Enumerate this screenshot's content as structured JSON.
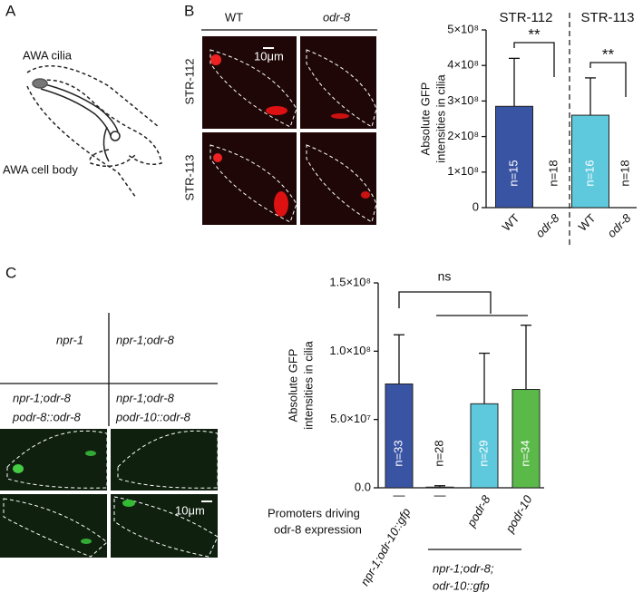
{
  "panel_labels": [
    "A",
    "B",
    "C"
  ],
  "panel_a": {
    "cilia": "AWA cilia",
    "cell_body": "AWA cell body"
  },
  "panel_b": {
    "columns": [
      "WT",
      "odr-8"
    ],
    "rows": [
      "STR-112",
      "STR-113"
    ],
    "scale": "10μm"
  },
  "panel_c": {
    "headers": [
      "npr-1",
      "npr-1;odr-8"
    ],
    "rescue_left": [
      "npr-1;odr-8",
      "podr-8::odr-8"
    ],
    "rescue_right": [
      "npr-1;odr-8",
      "podr-10::odr-8"
    ],
    "scale": "10μm"
  },
  "chart_data": [
    {
      "type": "bar",
      "y_label": [
        "Absolute GFP",
        "intensities in cilia"
      ],
      "categories": [
        "WT",
        "odr-8",
        "WT",
        "odr-8"
      ],
      "values": [
        285000000,
        0,
        260000000,
        0
      ],
      "errors": [
        135000000,
        0,
        105000000,
        0
      ],
      "colors": [
        "#3a54a4",
        "#3a54a4",
        "#5ec9dc",
        "#5ec9dc"
      ],
      "n_labels": [
        "n=15",
        "n=18",
        "n=16",
        "n=18"
      ],
      "groups": [
        "STR-112",
        "STR-113"
      ],
      "significance": [
        "**",
        "**"
      ],
      "ylim": [
        0,
        500000000
      ],
      "yticks": [
        0,
        {
          "value": 100000000,
          "label": "1×10⁸"
        },
        {
          "value": 200000000,
          "label": "2×10⁸"
        },
        {
          "value": 300000000,
          "label": "3×10⁸"
        },
        {
          "value": 400000000,
          "label": "4×10⁸"
        },
        {
          "value": 500000000,
          "label": "5×10⁸"
        }
      ]
    },
    {
      "type": "bar",
      "y_label": [
        "Absolute GFP",
        "intensities in cilia"
      ],
      "categories": [
        "—",
        "—",
        "podr-8",
        "podr-10"
      ],
      "values": [
        76000000,
        500000,
        61500000,
        72000000
      ],
      "errors": [
        36000000,
        1000000,
        37000000,
        47000000
      ],
      "colors": [
        "#3a54a4",
        "#ffffff",
        "#5ec9dc",
        "#5bb94a"
      ],
      "n_labels": [
        "n=33",
        "n=28",
        "n=29",
        "n=34"
      ],
      "significance": "ns",
      "x_title": [
        "Promoters driving",
        "odr-8 expression"
      ],
      "strains": [
        "npr-1;odr-10::gfp",
        "npr-1;odr-8;",
        "odr-10::gfp"
      ],
      "ylim": [
        0,
        150000000
      ],
      "yticks": [
        {
          "value": 0,
          "label": "0.0"
        },
        {
          "value": 50000000,
          "label": "5.0×10⁷"
        },
        {
          "value": 100000000,
          "label": "1.0×10⁸"
        },
        {
          "value": 150000000,
          "label": "1.5×10⁸"
        }
      ]
    }
  ]
}
